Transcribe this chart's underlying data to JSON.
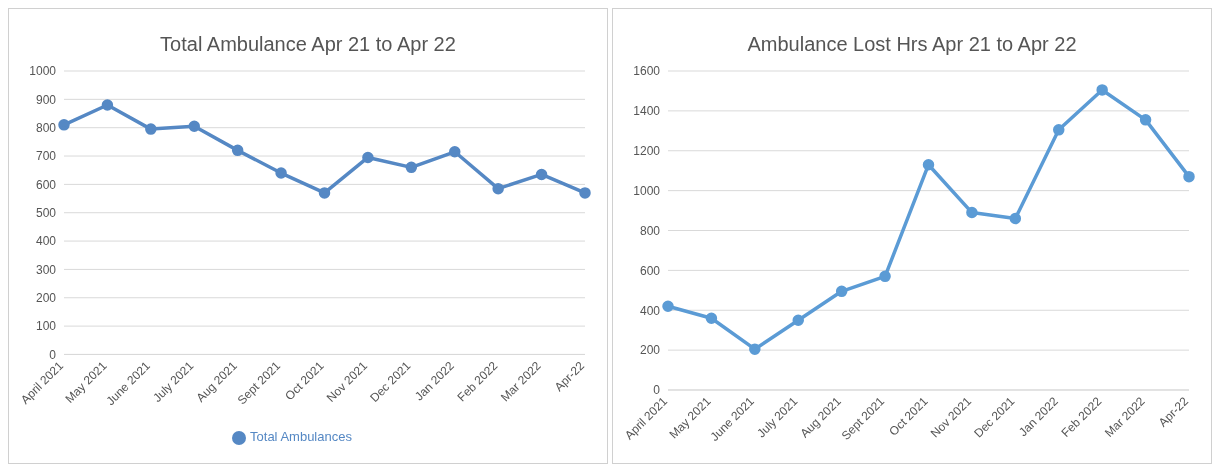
{
  "chart_data": [
    {
      "type": "line",
      "title": "Total Ambulance  Apr 21 to Apr 22",
      "categories": [
        "April 2021",
        "May 2021",
        "June 2021",
        "July 2021",
        "Aug 2021",
        "Sept 2021",
        "Oct 2021",
        "Nov 2021",
        "Dec 2021",
        "Jan 2022",
        "Feb 2022",
        "Mar 2022",
        "Apr-22"
      ],
      "series": [
        {
          "name": "Total Ambulances",
          "color": "#5588c4",
          "values": [
            810,
            880,
            795,
            805,
            720,
            640,
            570,
            695,
            660,
            715,
            585,
            635,
            570
          ]
        }
      ],
      "ylim": [
        0,
        1000
      ],
      "yticks": [
        0,
        100,
        200,
        300,
        400,
        500,
        600,
        700,
        800,
        900,
        1000
      ],
      "grid": "y",
      "legend": "bottom",
      "marker": "circle",
      "line_style": "solid"
    },
    {
      "type": "line",
      "title": "Ambulance Lost Hrs Apr 21 to Apr 22",
      "categories": [
        "April 2021",
        "May 2021",
        "June 2021",
        "July 2021",
        "Aug 2021",
        "Sept 2021",
        "Oct 2021",
        "Nov 2021",
        "Dec 2021",
        "Jan 2022",
        "Feb 2022",
        "Mar 2022",
        "Apr-22"
      ],
      "series": [
        {
          "color": "#5b9bd5",
          "values": [
            420,
            360,
            205,
            350,
            495,
            570,
            1130,
            890,
            860,
            1305,
            1505,
            1355,
            1070
          ]
        }
      ],
      "ylim": [
        0,
        1600
      ],
      "yticks": [
        0,
        200,
        400,
        600,
        800,
        1000,
        1200,
        1400,
        1600
      ],
      "grid": "y",
      "marker": "circle",
      "line_style": "solid"
    }
  ]
}
